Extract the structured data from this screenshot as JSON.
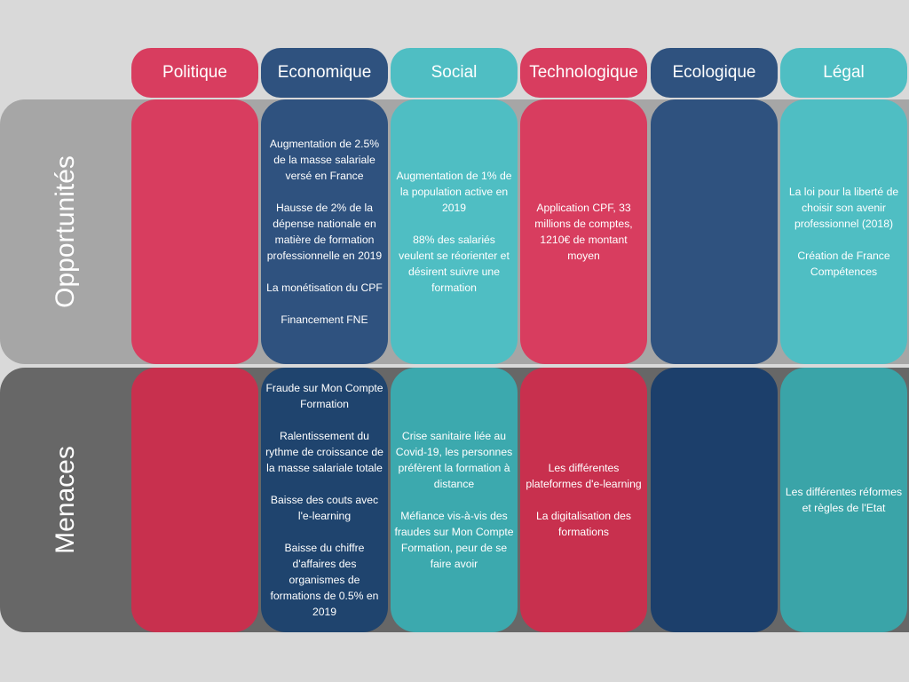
{
  "colors": {
    "politique": "#d83d5f",
    "economique": "#2f527f",
    "social": "#4fbec3",
    "technologique": "#d83d5f",
    "ecologique": "#2f527f",
    "legal": "#4fbec3",
    "opportunites_band": "#a6a6a6",
    "menaces_band": "#676767"
  },
  "columns": [
    {
      "key": "politique",
      "label": "Politique"
    },
    {
      "key": "economique",
      "label": "Economique"
    },
    {
      "key": "social",
      "label": "Social"
    },
    {
      "key": "technologique",
      "label": "Technologique"
    },
    {
      "key": "ecologique",
      "label": "Ecologique"
    },
    {
      "key": "legal",
      "label": "Légal"
    }
  ],
  "rows": [
    {
      "key": "opportunites",
      "label": "Opportunités"
    },
    {
      "key": "menaces",
      "label": "Menaces"
    }
  ],
  "cells": {
    "opportunites": {
      "politique": [],
      "economique": [
        "Augmentation de 2.5% de la masse salariale versé en France",
        "Hausse de 2% de la dépense nationale en matière de formation professionnelle en 2019",
        "La monétisation du CPF",
        "Financement FNE"
      ],
      "social": [
        "Augmentation de 1% de la population active en 2019",
        "88% des salariés veulent se réorienter et désirent suivre une formation"
      ],
      "technologique": [
        "Application CPF, 33 millions de comptes, 1210€ de montant moyen"
      ],
      "ecologique": [],
      "legal": [
        "La loi pour la liberté de choisir son avenir professionnel (2018)",
        "Création de France Compétences"
      ]
    },
    "menaces": {
      "politique": [],
      "economique": [
        "Fraude sur Mon Compte Formation",
        "Ralentissement du rythme de croissance de la masse salariale totale",
        "Baisse des couts avec l'e-learning",
        "Baisse du chiffre d'affaires des organismes de formations de 0.5% en 2019"
      ],
      "social": [
        "Crise sanitaire liée au Covid-19, les personnes préfèrent la formation à distance",
        "Méfiance vis-à-vis des fraudes sur Mon Compte Formation, peur de se faire avoir"
      ],
      "technologique": [
        "Les différentes plateformes d'e-learning",
        "La digitalisation des formations"
      ],
      "ecologique": [],
      "legal": [
        "Les différentes réformes et règles de l'Etat"
      ]
    }
  }
}
